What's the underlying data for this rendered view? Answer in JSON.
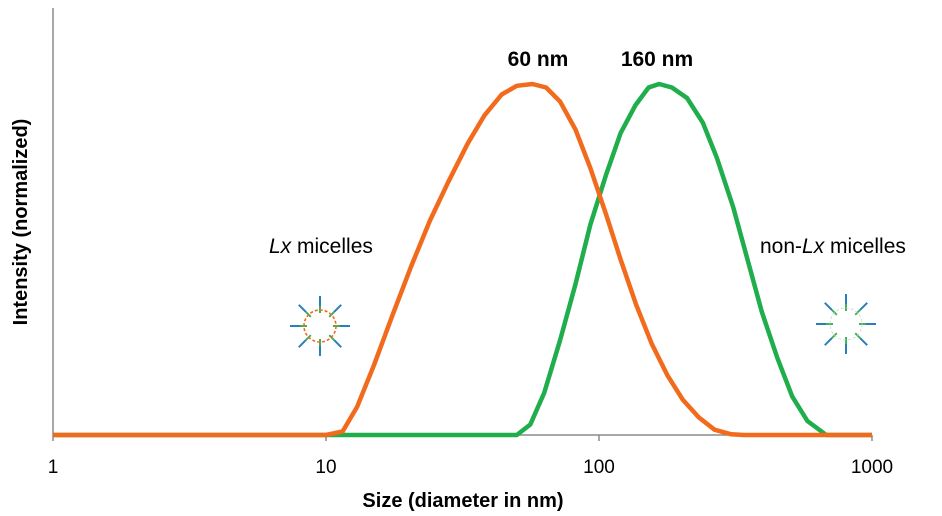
{
  "chart_data": {
    "type": "line",
    "xscale": "log",
    "xlim": [
      1,
      1000
    ],
    "ylim": [
      0,
      1.02
    ],
    "xticks": [
      1,
      10,
      100,
      1000
    ],
    "xtick_labels": [
      "1",
      "10",
      "100",
      "1000"
    ],
    "xlabel": "Size (diameter in nm)",
    "ylabel": "Intensity (normalized)",
    "grid": false,
    "legend": "none",
    "series": [
      {
        "color": "#f26b1d",
        "peak_label": "60 nm",
        "points": [
          [
            1,
            0
          ],
          [
            10,
            0
          ],
          [
            11.5,
            0.01
          ],
          [
            13,
            0.08
          ],
          [
            15,
            0.2
          ],
          [
            17.5,
            0.34
          ],
          [
            20.5,
            0.48
          ],
          [
            24,
            0.61
          ],
          [
            28,
            0.72
          ],
          [
            33,
            0.83
          ],
          [
            38,
            0.91
          ],
          [
            44,
            0.97
          ],
          [
            50,
            0.995
          ],
          [
            57,
            1.0
          ],
          [
            64,
            0.99
          ],
          [
            72,
            0.95
          ],
          [
            82,
            0.87
          ],
          [
            93,
            0.76
          ],
          [
            106,
            0.63
          ],
          [
            120,
            0.5
          ],
          [
            137,
            0.37
          ],
          [
            156,
            0.26
          ],
          [
            178,
            0.17
          ],
          [
            203,
            0.1
          ],
          [
            232,
            0.05
          ],
          [
            265,
            0.015
          ],
          [
            305,
            0.002
          ],
          [
            340,
            0
          ],
          [
            1000,
            0
          ]
        ]
      },
      {
        "color": "#1fae4b",
        "peak_label": "160 nm",
        "points": [
          [
            1,
            0
          ],
          [
            50,
            0
          ],
          [
            56,
            0.03
          ],
          [
            63,
            0.12
          ],
          [
            72,
            0.27
          ],
          [
            82,
            0.43
          ],
          [
            93,
            0.6
          ],
          [
            106,
            0.74
          ],
          [
            120,
            0.86
          ],
          [
            136,
            0.94
          ],
          [
            152,
            0.99
          ],
          [
            166,
            1.0
          ],
          [
            185,
            0.99
          ],
          [
            210,
            0.96
          ],
          [
            240,
            0.89
          ],
          [
            270,
            0.79
          ],
          [
            310,
            0.65
          ],
          [
            350,
            0.5
          ],
          [
            395,
            0.35
          ],
          [
            450,
            0.22
          ],
          [
            510,
            0.11
          ],
          [
            580,
            0.04
          ],
          [
            680,
            0
          ],
          [
            1000,
            0
          ]
        ]
      }
    ],
    "annotations": [
      {
        "text_italic": "Lx",
        "text": " micelles"
      },
      {
        "text": "non-",
        "text_italic": "Lx",
        "text_after": " micelles"
      }
    ],
    "icons": [
      "lx-micelle-icon",
      "non-lx-micelle-icon"
    ]
  }
}
